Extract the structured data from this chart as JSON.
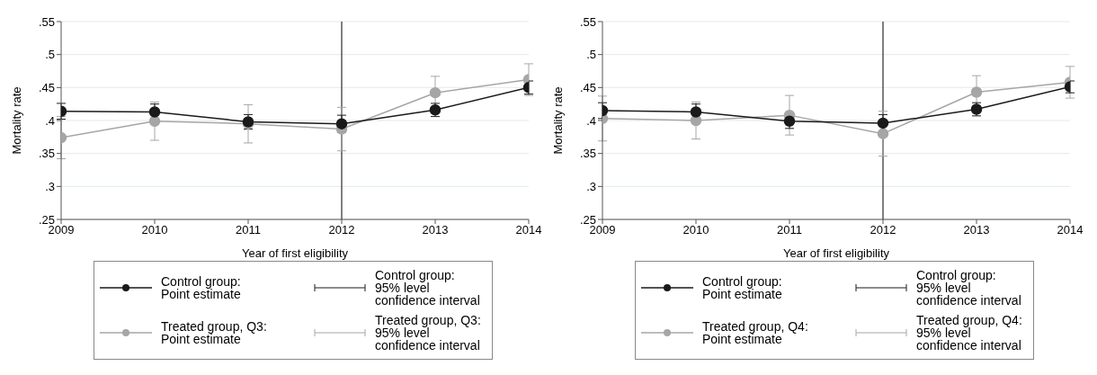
{
  "chart_data": [
    {
      "type": "line",
      "xlabel": "Year of first eligibility",
      "ylabel": "Mortality rate",
      "x": [
        2009,
        2010,
        2011,
        2012,
        2013,
        2014
      ],
      "series": [
        {
          "name": "Control group:\nPoint estimate",
          "color": "#1a1a1a",
          "values": [
            0.414,
            0.413,
            0.398,
            0.395,
            0.416,
            0.45
          ],
          "errors": [
            0.012,
            0.012,
            0.011,
            0.013,
            0.01,
            0.01
          ]
        },
        {
          "name": "Treated group, Q3:\nPoint estimate",
          "color": "#a6a6a6",
          "values": [
            0.374,
            0.399,
            0.395,
            0.387,
            0.442,
            0.462
          ],
          "errors": [
            0.032,
            0.029,
            0.029,
            0.033,
            0.025,
            0.024
          ]
        }
      ],
      "annotations": [
        "Control group:\n95% level\nconfidence interval",
        "Treated group, Q3:\n95% level\nconfidence interval"
      ],
      "xlim": [
        2009,
        2014
      ],
      "xticks": [
        2009,
        2010,
        2011,
        2012,
        2013,
        2014
      ],
      "ylim": [
        0.25,
        0.55
      ],
      "yticks": [
        {
          "value": 0.25,
          "label": ".25"
        },
        {
          "value": 0.3,
          "label": ".3"
        },
        {
          "value": 0.35,
          "label": ".35"
        },
        {
          "value": 0.4,
          "label": ".4"
        },
        {
          "value": 0.45,
          "label": ".45"
        },
        {
          "value": 0.5,
          "label": ".5"
        },
        {
          "value": 0.55,
          "label": ".55"
        }
      ],
      "ref_lines": [
        {
          "axis": "x",
          "value": 2012,
          "color": "#000000"
        }
      ],
      "grid": "y",
      "legend": "bottom",
      "marker": "circle",
      "line_style": "solid"
    },
    {
      "type": "line",
      "xlabel": "Year of first eligibility",
      "ylabel": "Mortality rate",
      "x": [
        2009,
        2010,
        2011,
        2012,
        2013,
        2014
      ],
      "series": [
        {
          "name": "Control group:\nPoint estimate",
          "color": "#1a1a1a",
          "values": [
            0.415,
            0.413,
            0.399,
            0.396,
            0.417,
            0.451
          ],
          "errors": [
            0.012,
            0.012,
            0.011,
            0.013,
            0.01,
            0.009
          ]
        },
        {
          "name": "Treated group, Q4:\nPoint estimate",
          "color": "#a6a6a6",
          "values": [
            0.403,
            0.4,
            0.408,
            0.38,
            0.443,
            0.458
          ],
          "errors": [
            0.034,
            0.028,
            0.03,
            0.034,
            0.025,
            0.024
          ]
        }
      ],
      "annotations": [
        "Control group:\n95% level\nconfidence interval",
        "Treated group, Q4:\n95% level\nconfidence interval"
      ],
      "xlim": [
        2009,
        2014
      ],
      "xticks": [
        2009,
        2010,
        2011,
        2012,
        2013,
        2014
      ],
      "ylim": [
        0.25,
        0.55
      ],
      "yticks": [
        {
          "value": 0.25,
          "label": ".25"
        },
        {
          "value": 0.3,
          "label": ".3"
        },
        {
          "value": 0.35,
          "label": ".35"
        },
        {
          "value": 0.4,
          "label": ".4"
        },
        {
          "value": 0.45,
          "label": ".45"
        },
        {
          "value": 0.5,
          "label": ".5"
        },
        {
          "value": 0.55,
          "label": ".55"
        }
      ],
      "ref_lines": [
        {
          "axis": "x",
          "value": 2012,
          "color": "#000000"
        }
      ],
      "grid": "y",
      "legend": "bottom",
      "marker": "circle",
      "line_style": "solid"
    }
  ]
}
